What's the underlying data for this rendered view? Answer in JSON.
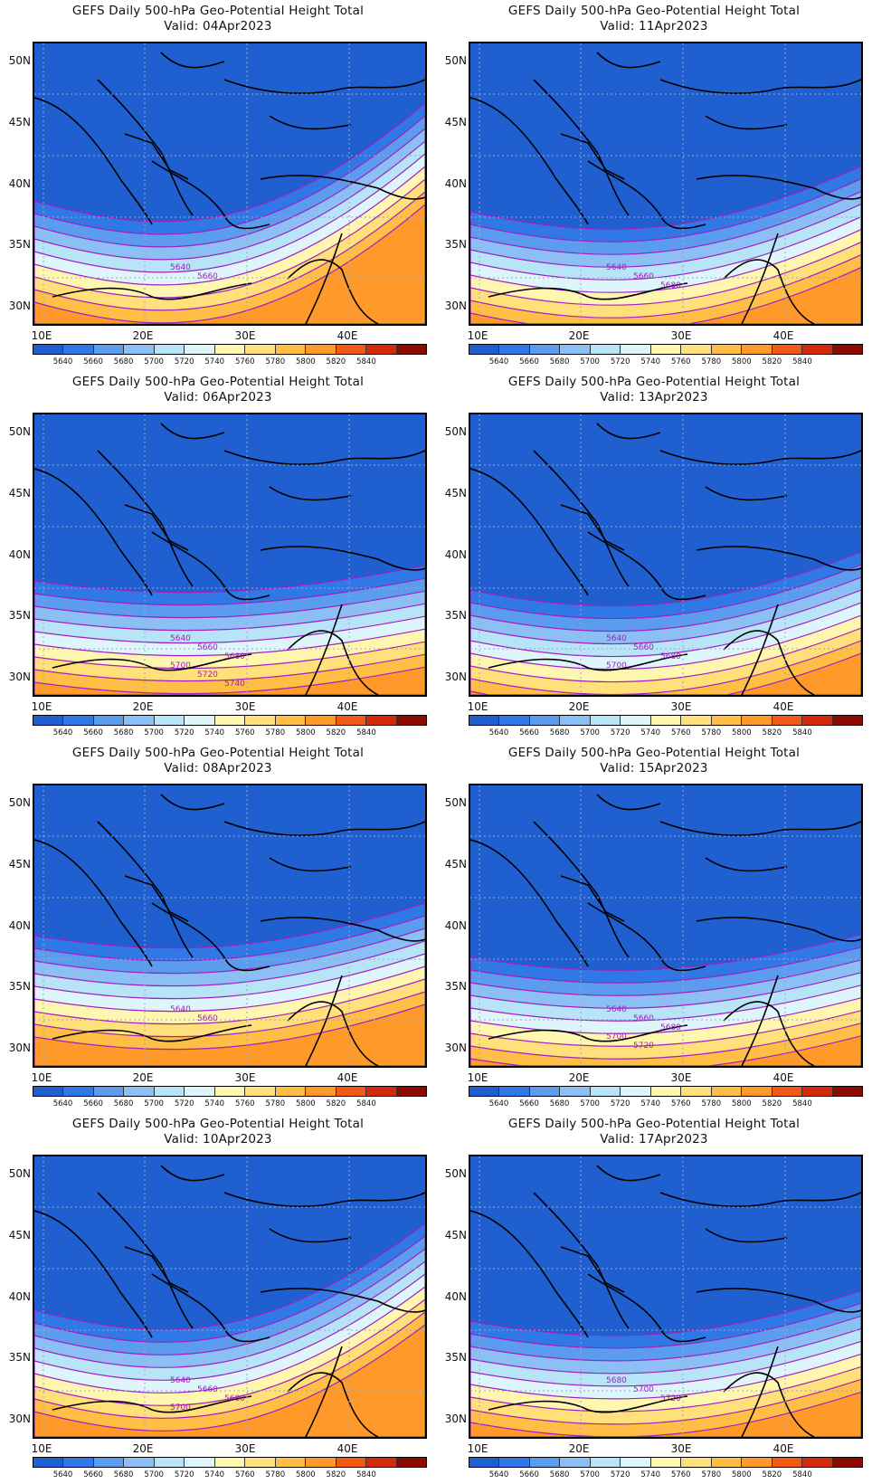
{
  "panels": [
    {
      "title": "GEFS Daily 500-hPa Geo-Potential Height Total",
      "valid": "Valid: 04Apr2023",
      "warmth": 1.0,
      "curve": 0.9,
      "labels": [
        "5640",
        "5660"
      ]
    },
    {
      "title": "GEFS Daily 500-hPa Geo-Potential Height Total",
      "valid": "Valid: 11Apr2023",
      "warmth": 0.7,
      "curve": 0.6,
      "labels": [
        "5640",
        "5660",
        "5680"
      ]
    },
    {
      "title": "GEFS Daily 500-hPa Geo-Potential Height Total",
      "valid": "Valid: 06Apr2023",
      "warmth": 0.75,
      "curve": 0.2,
      "labels": [
        "5640",
        "5660",
        "5680",
        "5700",
        "5720",
        "5740"
      ]
    },
    {
      "title": "GEFS Daily 500-hPa Geo-Potential Height Total",
      "valid": "Valid: 13Apr2023",
      "warmth": 0.5,
      "curve": 0.5,
      "labels": [
        "5640",
        "5660",
        "5680",
        "5700"
      ]
    },
    {
      "title": "GEFS Daily 500-hPa Geo-Potential Height Total",
      "valid": "Valid: 08Apr2023",
      "warmth": 1.2,
      "curve": 0.3,
      "labels": [
        "5640",
        "5660"
      ]
    },
    {
      "title": "GEFS Daily 500-hPa Geo-Potential Height Total",
      "valid": "Valid: 15Apr2023",
      "warmth": 0.6,
      "curve": 0.3,
      "labels": [
        "5640",
        "5660",
        "5680",
        "5700",
        "5720"
      ]
    },
    {
      "title": "GEFS Daily 500-hPa Geo-Potential Height Total",
      "valid": "Valid: 10Apr2023",
      "warmth": 1.1,
      "curve": 0.8,
      "labels": [
        "5640",
        "5660",
        "5680",
        "5700"
      ]
    },
    {
      "title": "GEFS Daily 500-hPa Geo-Potential Height Total",
      "valid": "Valid: 17Apr2023",
      "warmth": 0.8,
      "curve": 0.4,
      "labels": [
        "5680",
        "5700",
        "5720"
      ]
    }
  ],
  "lat_labels": [
    "50N",
    "45N",
    "40N",
    "35N",
    "30N"
  ],
  "lon_labels": [
    "10E",
    "20E",
    "30E",
    "40E"
  ],
  "colorbar": {
    "labels": [
      "5640",
      "5660",
      "5680",
      "5700",
      "5720",
      "5740",
      "5760",
      "5780",
      "5800",
      "5820",
      "5840"
    ],
    "colors": [
      "#1f5fd0",
      "#2f78e6",
      "#5b9cef",
      "#8cbff4",
      "#b8e4f7",
      "#def6fb",
      "#fff7b0",
      "#ffe07a",
      "#ffbe45",
      "#ff9a2a",
      "#f05a14",
      "#d22a0a",
      "#8c0a00"
    ]
  },
  "map_colors": {
    "base": "#1f5fd0",
    "contour": "#a020c0",
    "land_line": "#000000",
    "grid": "#9aa8c8"
  }
}
